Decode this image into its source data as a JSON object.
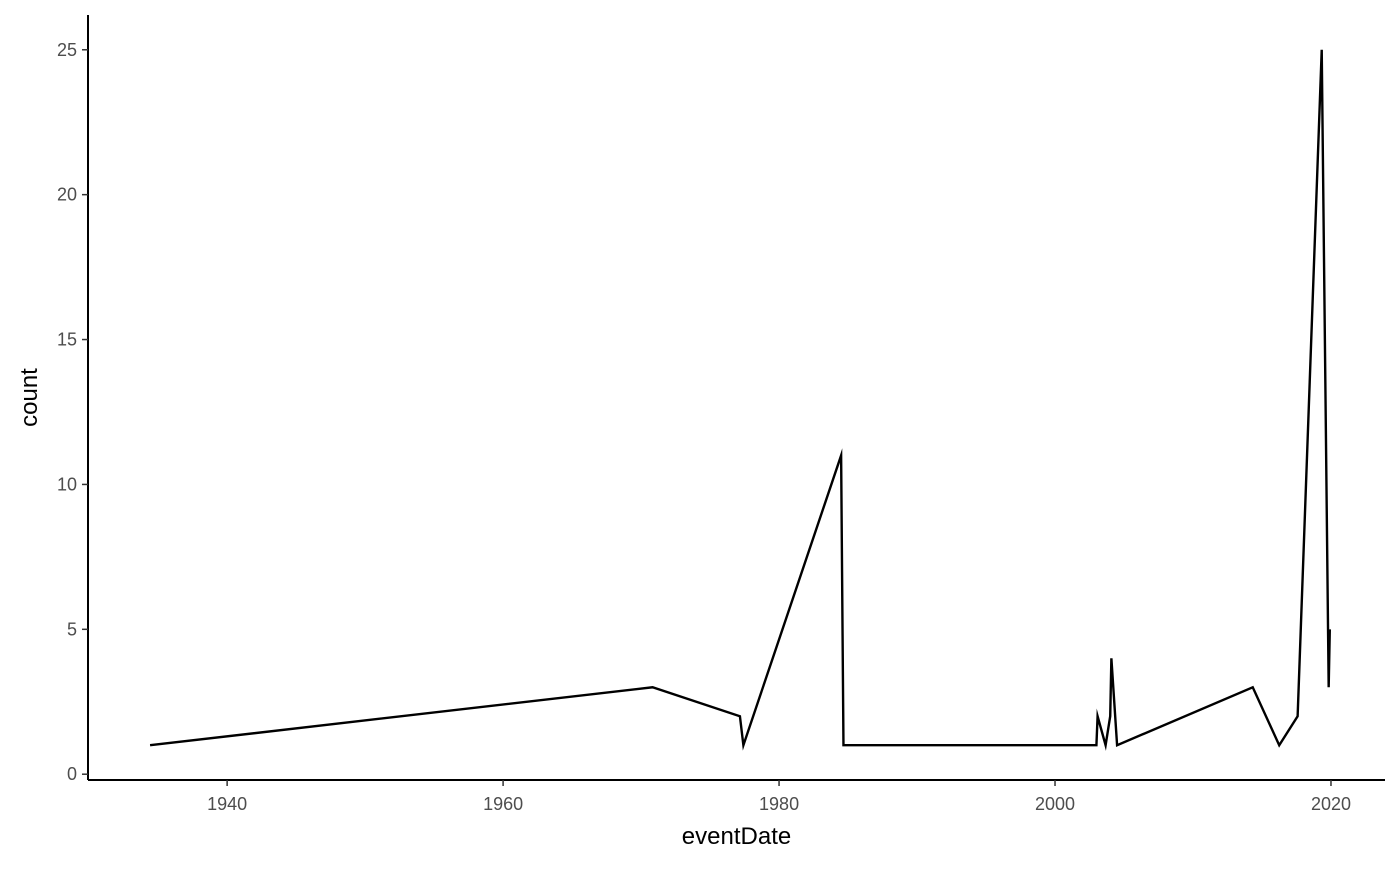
{
  "chart_data": {
    "type": "line",
    "title": "",
    "xlabel": "eventDate",
    "ylabel": "count",
    "x_is_date": true,
    "xlim": [
      "1929-12-01",
      "2023-12-01"
    ],
    "ylim": [
      -0.2,
      26.2
    ],
    "x_ticks": [
      "1940",
      "1960",
      "1980",
      "2000",
      "2020"
    ],
    "x_tick_dates": [
      "1940-01-01",
      "1960-01-01",
      "1980-01-01",
      "2000-01-01",
      "2020-01-01"
    ],
    "y_ticks": [
      0,
      5,
      10,
      15,
      20,
      25
    ],
    "grid": false,
    "legend": "none",
    "line_color": "#000000",
    "series": [
      {
        "x": [
          "1934-06-01",
          "1970-11-01",
          "1977-03-01",
          "1977-06-01",
          "1984-07-01",
          "1984-09-01",
          "2003-01-01",
          "2003-02-01",
          "2003-09-01",
          "2004-01-01",
          "2004-02-01",
          "2004-07-01",
          "2014-05-01",
          "2016-04-01",
          "2017-08-01",
          "2019-05-01",
          "2019-11-01",
          "2019-12-01"
        ],
        "y": [
          1,
          3,
          2,
          1,
          11,
          1,
          1,
          2,
          1,
          2,
          4,
          1,
          3,
          1,
          2,
          25,
          3,
          5
        ]
      }
    ]
  }
}
